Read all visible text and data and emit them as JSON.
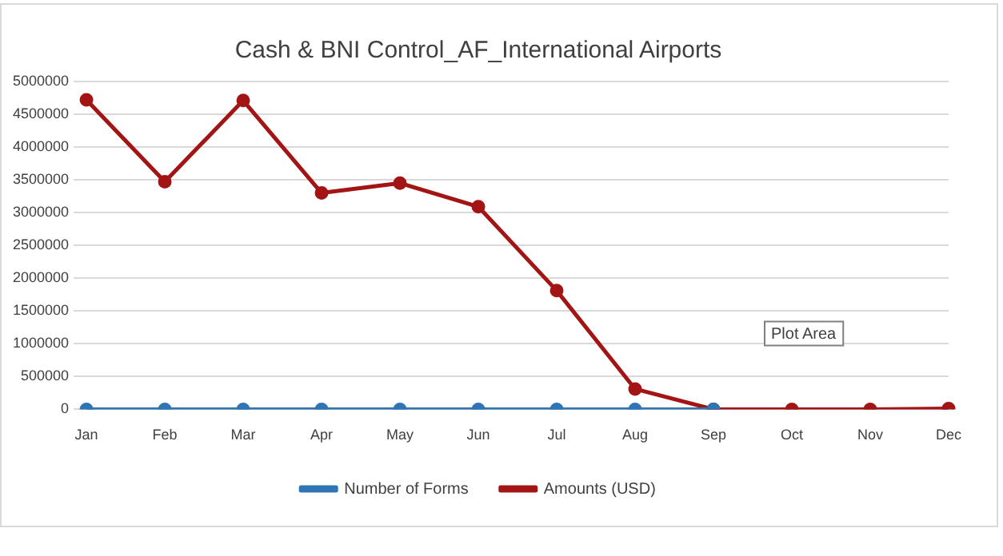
{
  "chart_data": {
    "type": "line",
    "title": "Cash & BNI Control_AF_International Airports",
    "categories": [
      "Jan",
      "Feb",
      "Mar",
      "Apr",
      "May",
      "Jun",
      "Jul",
      "Aug",
      "Sep",
      "Oct",
      "Nov",
      "Dec"
    ],
    "series": [
      {
        "name": "Number of Forms",
        "color": "#2e75b6",
        "values": [
          0,
          0,
          0,
          0,
          0,
          0,
          0,
          0,
          0,
          null,
          null,
          null
        ]
      },
      {
        "name": "Amounts (USD)",
        "color": "#a31515",
        "values": [
          4720000,
          3470000,
          4710000,
          3300000,
          3450000,
          3090000,
          1810000,
          310000,
          0,
          0,
          0,
          10000
        ]
      }
    ],
    "ylim": [
      0,
      5000000
    ],
    "yticks": [
      0,
      500000,
      1000000,
      1500000,
      2000000,
      2500000,
      3000000,
      3500000,
      4000000,
      4500000,
      5000000
    ],
    "grid": "y",
    "legend": "bottom",
    "marker": "circle",
    "line_style": "solid",
    "annotations": [
      "Plot Area"
    ]
  }
}
